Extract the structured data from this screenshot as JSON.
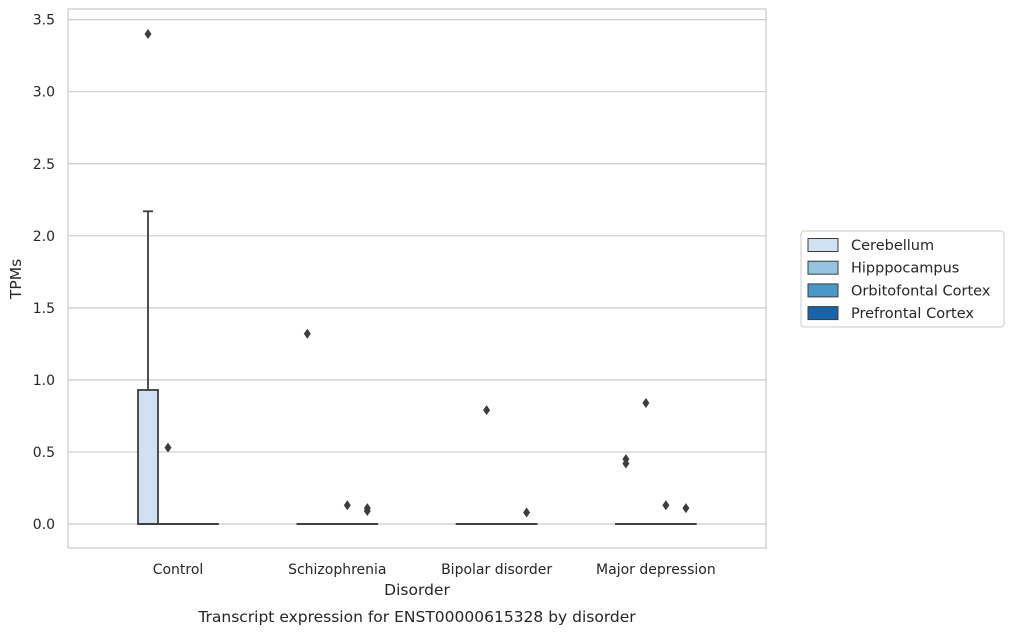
{
  "chart_data": {
    "type": "box",
    "title": "",
    "caption": "Transcript expression for ENST00000615328 by disorder",
    "xlabel": "Disorder",
    "ylabel": "TPMs",
    "ylim": [
      -0.17,
      3.57
    ],
    "yticks": [
      0.0,
      0.5,
      1.0,
      1.5,
      2.0,
      2.5,
      3.0,
      3.5
    ],
    "ytick_labels": [
      "0.0",
      "0.5",
      "1.0",
      "1.5",
      "2.0",
      "2.5",
      "3.0",
      "3.5"
    ],
    "grid": true,
    "legend_position": "right",
    "categories": [
      "Control",
      "Schizophrenia",
      "Bipolar disorder",
      "Major depression"
    ],
    "series": [
      {
        "name": "Cerebellum",
        "color": "#d0e1f2",
        "boxes": [
          {
            "category": "Control",
            "q1": 0.0,
            "median": 0.0,
            "q3": 0.93,
            "whisker_low": 0.0,
            "whisker_high": 2.17,
            "outliers": [
              3.4
            ]
          },
          {
            "category": "Schizophrenia",
            "q1": 0.0,
            "median": 0.0,
            "q3": 0.0,
            "whisker_low": 0.0,
            "whisker_high": 0.0,
            "outliers": [
              1.32
            ]
          },
          {
            "category": "Bipolar disorder",
            "q1": 0.0,
            "median": 0.0,
            "q3": 0.0,
            "whisker_low": 0.0,
            "whisker_high": 0.0,
            "outliers": []
          },
          {
            "category": "Major depression",
            "q1": 0.0,
            "median": 0.0,
            "q3": 0.0,
            "whisker_low": 0.0,
            "whisker_high": 0.0,
            "outliers": [
              0.45,
              0.42
            ]
          }
        ]
      },
      {
        "name": "Hipppocampus",
        "color": "#94c4df",
        "boxes": [
          {
            "category": "Control",
            "q1": 0.0,
            "median": 0.0,
            "q3": 0.0,
            "whisker_low": 0.0,
            "whisker_high": 0.0,
            "outliers": [
              0.53
            ]
          },
          {
            "category": "Schizophrenia",
            "q1": 0.0,
            "median": 0.0,
            "q3": 0.0,
            "whisker_low": 0.0,
            "whisker_high": 0.0,
            "outliers": []
          },
          {
            "category": "Bipolar disorder",
            "q1": 0.0,
            "median": 0.0,
            "q3": 0.0,
            "whisker_low": 0.0,
            "whisker_high": 0.0,
            "outliers": [
              0.79
            ]
          },
          {
            "category": "Major depression",
            "q1": 0.0,
            "median": 0.0,
            "q3": 0.0,
            "whisker_low": 0.0,
            "whisker_high": 0.0,
            "outliers": [
              0.84
            ]
          }
        ]
      },
      {
        "name": "Orbitofontal Cortex",
        "color": "#4a98c9",
        "boxes": [
          {
            "category": "Control",
            "q1": 0.0,
            "median": 0.0,
            "q3": 0.0,
            "whisker_low": 0.0,
            "whisker_high": 0.0,
            "outliers": []
          },
          {
            "category": "Schizophrenia",
            "q1": 0.0,
            "median": 0.0,
            "q3": 0.0,
            "whisker_low": 0.0,
            "whisker_high": 0.0,
            "outliers": [
              0.13
            ]
          },
          {
            "category": "Bipolar disorder",
            "q1": 0.0,
            "median": 0.0,
            "q3": 0.0,
            "whisker_low": 0.0,
            "whisker_high": 0.0,
            "outliers": []
          },
          {
            "category": "Major depression",
            "q1": 0.0,
            "median": 0.0,
            "q3": 0.0,
            "whisker_low": 0.0,
            "whisker_high": 0.0,
            "outliers": [
              0.13
            ]
          }
        ]
      },
      {
        "name": "Prefrontal Cortex",
        "color": "#1764ab",
        "boxes": [
          {
            "category": "Control",
            "q1": 0.0,
            "median": 0.0,
            "q3": 0.0,
            "whisker_low": 0.0,
            "whisker_high": 0.0,
            "outliers": []
          },
          {
            "category": "Schizophrenia",
            "q1": 0.0,
            "median": 0.0,
            "q3": 0.0,
            "whisker_low": 0.0,
            "whisker_high": 0.0,
            "outliers": [
              0.11,
              0.09
            ]
          },
          {
            "category": "Bipolar disorder",
            "q1": 0.0,
            "median": 0.0,
            "q3": 0.0,
            "whisker_low": 0.0,
            "whisker_high": 0.0,
            "outliers": [
              0.08
            ]
          },
          {
            "category": "Major depression",
            "q1": 0.0,
            "median": 0.0,
            "q3": 0.0,
            "whisker_low": 0.0,
            "whisker_high": 0.0,
            "outliers": [
              0.11
            ]
          }
        ]
      }
    ]
  }
}
